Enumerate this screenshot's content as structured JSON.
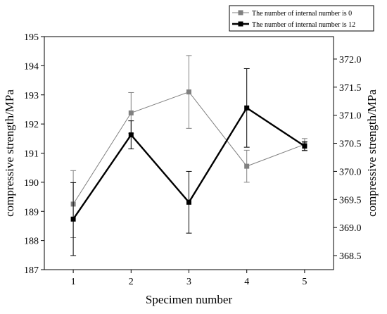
{
  "chart_data": {
    "type": "line",
    "title": "",
    "xlabel": "Specimen number",
    "ylabel": "compressive strength/MPa",
    "y2label": "compressive strength/MPa",
    "x": [
      1,
      2,
      3,
      4,
      5
    ],
    "xticks": [
      "1",
      "2",
      "3",
      "4",
      "5"
    ],
    "xlim": [
      0.5,
      5.5
    ],
    "ylim": [
      187,
      195
    ],
    "yticks": [
      "187",
      "188",
      "189",
      "190",
      "191",
      "192",
      "193",
      "194",
      "195"
    ],
    "y2lim": [
      368.25,
      372.4
    ],
    "y2ticks": [
      "368.5",
      "369.0",
      "369.5",
      "370.0",
      "370.5",
      "371.0",
      "371.5",
      "372.0"
    ],
    "grid": false,
    "legend_position": "top-right",
    "series": [
      {
        "name": "The number of internal number is 0",
        "axis": "left",
        "color": "#808080",
        "marker": "square",
        "values": [
          189.25,
          192.38,
          193.1,
          190.55,
          191.3
        ],
        "error": [
          1.15,
          0.7,
          1.25,
          0.55,
          0.2
        ]
      },
      {
        "name": "The number of internal number is 12",
        "axis": "right",
        "color": "#000000",
        "marker": "square",
        "values": [
          369.15,
          370.65,
          369.45,
          371.13,
          370.45
        ],
        "error": [
          0.65,
          0.25,
          0.55,
          0.7,
          0.08
        ]
      }
    ]
  }
}
